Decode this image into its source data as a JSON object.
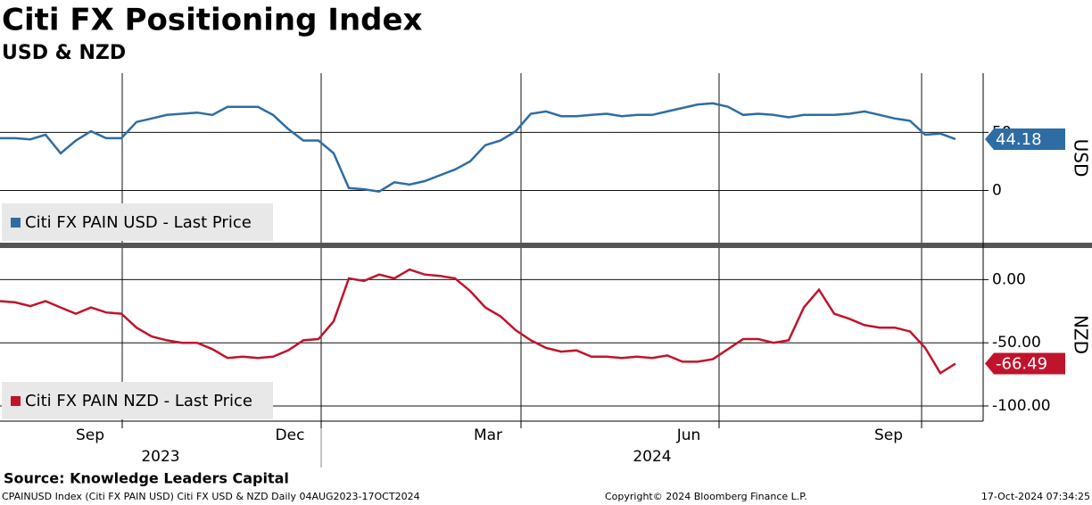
{
  "title": "Citi FX Positioning Index",
  "subtitle": "USD & NZD",
  "chart_data": [
    {
      "type": "line",
      "axis_title": "USD",
      "ylim": [
        -45,
        101
      ],
      "yticks": [
        0,
        50
      ],
      "series": [
        {
          "name": "Citi FX PAIN USD - Last Price",
          "color": "#2e6da4",
          "values": [
            45,
            45,
            44,
            48,
            32,
            43,
            51,
            45,
            45,
            59,
            62,
            65,
            66,
            67,
            65,
            72,
            72,
            72,
            65,
            53,
            43,
            43,
            32,
            2,
            1,
            -1,
            7,
            5,
            8,
            13,
            18,
            25,
            39,
            43,
            51,
            66,
            68,
            64,
            64,
            65,
            66,
            64,
            65,
            65,
            68,
            71,
            74,
            75,
            72,
            65,
            66,
            65,
            63,
            65,
            65,
            65,
            66,
            68,
            65,
            62,
            60,
            48,
            49,
            44.18
          ]
        }
      ]
    },
    {
      "type": "line",
      "axis_title": "NZD",
      "ylim": [
        -112,
        25
      ],
      "yticks": [
        {
          "value": 0,
          "label": "0.00"
        },
        {
          "value": -50,
          "label": "-50.00"
        },
        {
          "value": -100,
          "label": "-100.00"
        }
      ],
      "series": [
        {
          "name": "Citi FX PAIN NZD - Last Price",
          "color": "#c0142c",
          "values": [
            -17,
            -18,
            -21,
            -17,
            -22,
            -27,
            -22,
            -26,
            -27,
            -38,
            -45,
            -48,
            -50,
            -50,
            -55,
            -62,
            -61,
            -62,
            -61,
            -56,
            -48,
            -47,
            -33,
            1,
            -1,
            4,
            1,
            8,
            4,
            3,
            1,
            -9,
            -22,
            -29,
            -40,
            -48,
            -54,
            -57,
            -56,
            -61,
            -61,
            -62,
            -61,
            -62,
            -60,
            -65,
            -65,
            -63,
            -55,
            -47,
            -47,
            -50,
            -48,
            -22,
            -8,
            -27,
            -31,
            -36,
            -38,
            -38,
            -41,
            -54,
            -74,
            -66.49
          ]
        }
      ],
      "x_labels": [
        "Sep",
        "Dec",
        "Mar",
        "Jun",
        "Sep"
      ],
      "year_labels": [
        "2023",
        "2024"
      ]
    }
  ],
  "source": "Source: Knowledge Leaders Capital",
  "footer": {
    "left": "CPAINUSD Index (Citi FX PAIN USD) Citi FX USD & NZD  Daily 04AUG2023-17OCT2024",
    "center": "Copyright© 2024 Bloomberg Finance L.P.",
    "right": "17-Oct-2024 07:34:25"
  }
}
